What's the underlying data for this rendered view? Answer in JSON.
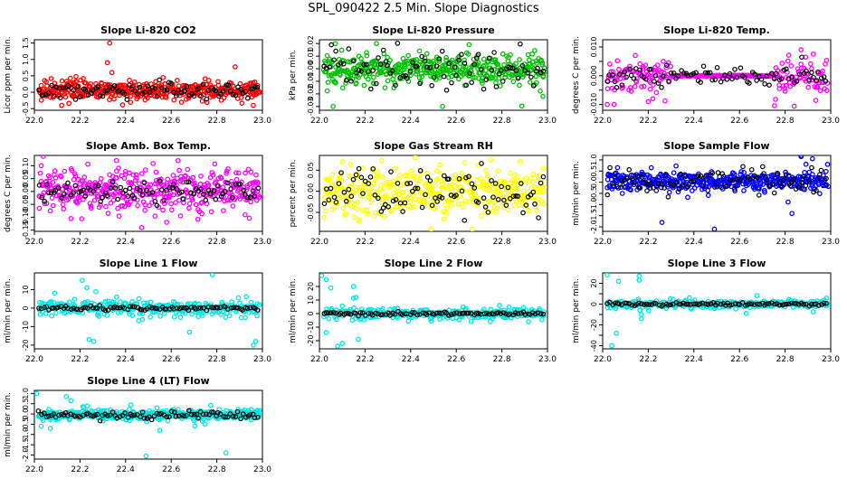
{
  "page_title": "SPL_090422  2.5 Min. Slope Diagnostics",
  "chart_data": [
    {
      "type": "scatter",
      "title": "Slope Li-820 CO2",
      "ylabel": "Licor ppm per min.",
      "xlim": [
        22.0,
        23.0
      ],
      "ylim": [
        -0.55,
        1.6
      ],
      "xticks": [
        22.0,
        22.2,
        22.4,
        22.6,
        22.8,
        23.0
      ],
      "yticks": [
        -0.5,
        0.0,
        0.5,
        1.0,
        1.5
      ],
      "yticklabels": [
        "-0.5",
        "0.0",
        "0.5",
        "1.0",
        "1.5"
      ],
      "color": "#ff0000",
      "center": 0.05,
      "spread": 0.13,
      "black_spread": 0.13,
      "n_points": 420,
      "n_black": 90,
      "outliers": [
        [
          22.33,
          1.5
        ],
        [
          22.32,
          0.9
        ],
        [
          22.34,
          0.6
        ],
        [
          22.12,
          -0.4
        ],
        [
          22.96,
          -0.4
        ]
      ]
    },
    {
      "type": "scatter",
      "title": "Slope Li-820 Pressure",
      "ylabel": "kPa per min.",
      "xlim": [
        22.0,
        23.0
      ],
      "ylim": [
        -0.033,
        0.023
      ],
      "xticks": [
        22.0,
        22.2,
        22.4,
        22.6,
        22.8,
        23.0
      ],
      "yticks": [
        -0.03,
        -0.02,
        -0.01,
        0.0,
        0.01,
        0.02
      ],
      "yticklabels": [
        "-0.03",
        "-0.02",
        "-0.01",
        "0.00",
        "0.01",
        "0.02"
      ],
      "color": "#00c000",
      "center": 0.0,
      "spread": 0.006,
      "black_spread": 0.008,
      "n_points": 420,
      "n_black": 90,
      "outliers": [
        [
          22.06,
          -0.03
        ],
        [
          22.54,
          -0.03
        ],
        [
          22.98,
          -0.022
        ],
        [
          22.07,
          0.02
        ],
        [
          22.25,
          0.02
        ]
      ]
    },
    {
      "type": "scatter",
      "title": "Slope Li-820 Temp.",
      "ylabel": "degrees C per min.",
      "xlim": [
        22.0,
        23.0
      ],
      "ylim": [
        -0.012,
        0.0125
      ],
      "xticks": [
        22.0,
        22.2,
        22.4,
        22.6,
        22.8,
        23.0
      ],
      "yticks": [
        -0.01,
        -0.005,
        0.0,
        0.005,
        0.01
      ],
      "yticklabels": [
        "-0.010",
        "",
        "0.000",
        "",
        "0.010"
      ],
      "color": "#ff00ff",
      "center": 0.0,
      "spread": 0.003,
      "black_spread": 0.002,
      "n_points": 300,
      "n_black": 90,
      "flat_range": [
        22.3,
        22.75
      ],
      "outliers": [
        [
          22.02,
          -0.01
        ],
        [
          22.05,
          -0.01
        ],
        [
          22.2,
          -0.009
        ],
        [
          22.22,
          -0.008
        ],
        [
          22.87,
          0.009
        ]
      ]
    },
    {
      "type": "scatter",
      "title": "Slope Amb. Box Temp.",
      "ylabel": "degrees C per min.",
      "xlim": [
        22.0,
        23.0
      ],
      "ylim": [
        -0.155,
        0.14
      ],
      "xticks": [
        22.0,
        22.2,
        22.4,
        22.6,
        22.8,
        23.0
      ],
      "yticks": [
        -0.15,
        -0.1,
        -0.05,
        0.0,
        0.05,
        0.1
      ],
      "yticklabels": [
        "-0.15",
        "-0.10",
        "-0.05",
        "0.00",
        "0.05",
        "0.10"
      ],
      "color": "#ff00ff",
      "center": 0.0,
      "spread": 0.04,
      "black_spread": 0.02,
      "n_points": 420,
      "n_black": 90,
      "outliers": [
        [
          22.47,
          -0.14
        ],
        [
          22.58,
          -0.12
        ],
        [
          22.36,
          0.12
        ],
        [
          22.63,
          0.12
        ],
        [
          22.03,
          0.1
        ]
      ]
    },
    {
      "type": "scatter",
      "title": "Slope Gas Stream RH",
      "ylabel": "percent per min.",
      "xlim": [
        22.0,
        23.0
      ],
      "ylim": [
        -0.095,
        0.085
      ],
      "xticks": [
        22.0,
        22.2,
        22.4,
        22.6,
        22.8,
        23.0
      ],
      "yticks": [
        -0.05,
        0.0,
        0.05
      ],
      "yticklabels": [
        "-0.05",
        "0.00",
        "0.05"
      ],
      "color": "#ffff00",
      "center": 0.0,
      "spread": 0.028,
      "black_spread": 0.028,
      "n_points": 420,
      "n_black": 90,
      "outliers": [
        [
          22.49,
          -0.09
        ],
        [
          22.67,
          -0.09
        ],
        [
          22.42,
          0.08
        ],
        [
          22.1,
          0.07
        ],
        [
          22.88,
          0.07
        ]
      ]
    },
    {
      "type": "scatter",
      "title": "Slope Sample Flow",
      "ylabel": "ml/min per min.",
      "xlim": [
        22.0,
        23.0
      ],
      "ylim": [
        -2.2,
        1.2
      ],
      "xticks": [
        22.0,
        22.2,
        22.4,
        22.6,
        22.8,
        23.0
      ],
      "yticks": [
        -2.0,
        -1.5,
        -1.0,
        -0.5,
        0.0,
        0.5,
        1.0
      ],
      "yticklabels": [
        "-2.0",
        "-1.5",
        "-1.0",
        "-0.5",
        "0.0",
        "0.5",
        "1.0"
      ],
      "color": "#0000ff",
      "center": 0.05,
      "spread": 0.2,
      "black_spread": 0.3,
      "n_points": 420,
      "n_black": 90,
      "outliers": [
        [
          22.49,
          -2.1
        ],
        [
          22.26,
          -1.8
        ],
        [
          22.83,
          -1.4
        ],
        [
          22.87,
          1.15
        ],
        [
          22.92,
          1.05
        ]
      ]
    },
    {
      "type": "scatter",
      "title": "Slope Line 1 Flow",
      "ylabel": "ml/min per min.",
      "xlim": [
        22.0,
        23.0
      ],
      "ylim": [
        -22,
        19
      ],
      "xticks": [
        22.0,
        22.2,
        22.4,
        22.6,
        22.8,
        23.0
      ],
      "yticks": [
        -20,
        -10,
        0,
        10
      ],
      "yticklabels": [
        "-20",
        "-10",
        "0",
        "10"
      ],
      "color": "#00e5e5",
      "center": 0.0,
      "spread": 2.2,
      "black_spread": 0.5,
      "n_points": 300,
      "n_black": 90,
      "outliers": [
        [
          22.21,
          15
        ],
        [
          22.23,
          11
        ],
        [
          22.24,
          -17
        ],
        [
          22.26,
          -18
        ],
        [
          22.78,
          18
        ],
        [
          22.96,
          -20
        ],
        [
          22.97,
          -18
        ],
        [
          22.68,
          -13
        ]
      ]
    },
    {
      "type": "scatter",
      "title": "Slope Line 2 Flow",
      "ylabel": "ml/min per min.",
      "xlim": [
        22.0,
        23.0
      ],
      "ylim": [
        -26,
        30
      ],
      "xticks": [
        22.0,
        22.2,
        22.4,
        22.6,
        22.8,
        23.0
      ],
      "yticks": [
        -20,
        -10,
        0,
        10,
        20
      ],
      "yticklabels": [
        "-20",
        "-10",
        "0",
        "10",
        "20"
      ],
      "color": "#00e5e5",
      "center": 0.0,
      "spread": 2.0,
      "black_spread": 0.6,
      "n_points": 300,
      "n_black": 90,
      "outliers": [
        [
          22.01,
          28
        ],
        [
          22.03,
          25
        ],
        [
          22.05,
          19
        ],
        [
          22.08,
          -24
        ],
        [
          22.1,
          -22
        ],
        [
          22.03,
          -14
        ],
        [
          22.15,
          20
        ],
        [
          22.17,
          -19
        ],
        [
          22.16,
          12
        ]
      ]
    },
    {
      "type": "scatter",
      "title": "Slope Line 3 Flow",
      "ylabel": "ml/min per min.",
      "xlim": [
        22.0,
        23.0
      ],
      "ylim": [
        -43,
        30
      ],
      "xticks": [
        22.0,
        22.2,
        22.4,
        22.6,
        22.8,
        23.0
      ],
      "yticks": [
        -40,
        -30,
        -20,
        -10,
        0,
        10,
        20
      ],
      "yticklabels": [
        "-40",
        "",
        "-20",
        "",
        "0",
        "",
        "20"
      ],
      "color": "#00e5e5",
      "center": 0.0,
      "spread": 2.0,
      "black_spread": 0.8,
      "n_points": 300,
      "n_black": 90,
      "outliers": [
        [
          22.02,
          28
        ],
        [
          22.04,
          -40
        ],
        [
          22.07,
          22
        ],
        [
          22.06,
          -28
        ],
        [
          22.16,
          27
        ],
        [
          22.16,
          23
        ],
        [
          22.17,
          -14
        ],
        [
          22.17,
          -10
        ],
        [
          22.63,
          -9
        ]
      ]
    },
    {
      "type": "scatter",
      "title": "Slope Line 4 (LT) Flow",
      "ylabel": "ml/min per min.",
      "xlim": [
        22.0,
        23.0
      ],
      "ylim": [
        -2.2,
        1.15
      ],
      "xticks": [
        22.0,
        22.2,
        22.4,
        22.6,
        22.8,
        23.0
      ],
      "yticks": [
        -2.0,
        -1.5,
        -1.0,
        -0.5,
        0.0,
        0.5,
        1.0
      ],
      "yticklabels": [
        "-2.0",
        "-1.5",
        "-1.0",
        "-0.5",
        "0.0",
        "0.5",
        "1.0"
      ],
      "color": "#00e5e5",
      "center": -0.05,
      "spread": 0.12,
      "black_spread": 0.1,
      "n_points": 420,
      "n_black": 90,
      "outliers": [
        [
          22.01,
          1.0
        ],
        [
          22.16,
          0.65
        ],
        [
          22.49,
          -2.05
        ],
        [
          22.84,
          -1.9
        ],
        [
          22.55,
          -0.8
        ],
        [
          22.03,
          -0.6
        ],
        [
          22.07,
          -0.7
        ]
      ]
    }
  ]
}
